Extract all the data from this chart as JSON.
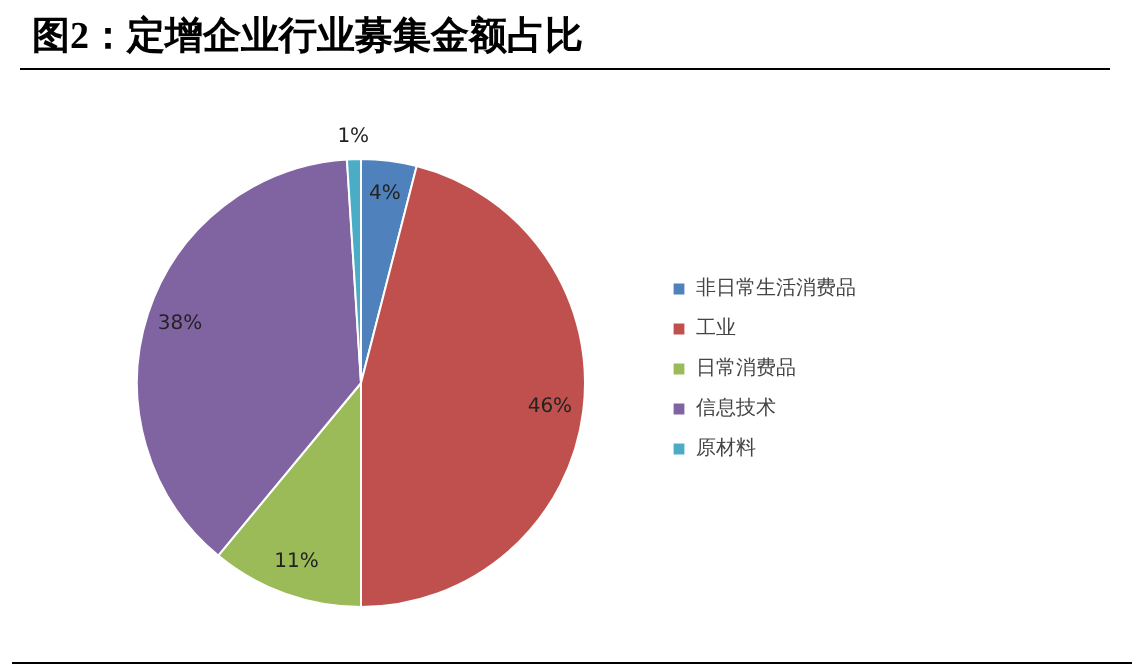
{
  "chart_data": {
    "type": "pie",
    "title": "图2：定增企业行业募集金额占比",
    "categories": [
      "非日常生活消费品",
      "工业",
      "日常消费品",
      "信息技术",
      "原材料"
    ],
    "values": [
      4,
      46,
      11,
      38,
      1
    ],
    "value_labels": [
      "4%",
      "46%",
      "11%",
      "38%",
      "1%"
    ],
    "colors": [
      "#4f81bd",
      "#c0504d",
      "#9bbb59",
      "#8064a2",
      "#4bacc6"
    ],
    "legend": "right"
  }
}
